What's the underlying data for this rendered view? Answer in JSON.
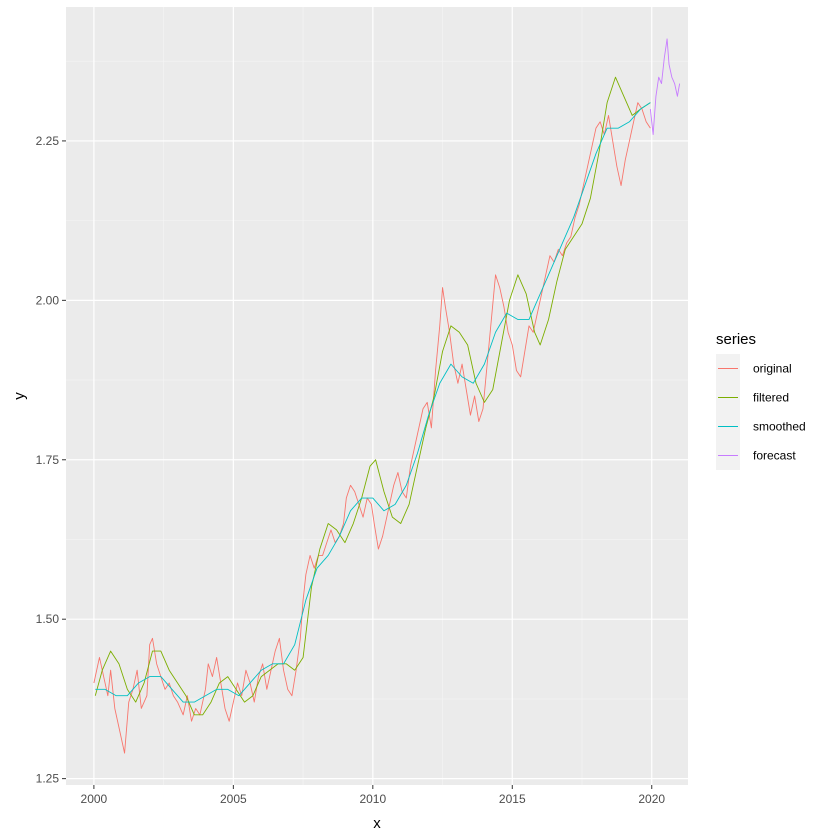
{
  "chart_data": {
    "type": "line",
    "title": "",
    "xlabel": "x",
    "ylabel": "y",
    "xlim": [
      1999.0,
      2021.3
    ],
    "ylim": [
      1.24,
      2.46
    ],
    "x_ticks": [
      2000,
      2005,
      2010,
      2015,
      2020
    ],
    "x_tick_labels": [
      "2000",
      "2005",
      "2010",
      "2015",
      "2020"
    ],
    "y_ticks": [
      1.25,
      1.5,
      1.75,
      2.0,
      2.25
    ],
    "y_tick_labels": [
      "1.25",
      "1.50",
      "1.75",
      "2.00",
      "2.25"
    ],
    "grid": true,
    "legend": {
      "title": "series",
      "position": "right"
    },
    "series": [
      {
        "name": "original",
        "color": "#F8766D",
        "points": [
          [
            2000.0,
            1.4
          ],
          [
            2000.2,
            1.44
          ],
          [
            2000.35,
            1.41
          ],
          [
            2000.5,
            1.38
          ],
          [
            2000.6,
            1.42
          ],
          [
            2000.75,
            1.36
          ],
          [
            2000.9,
            1.33
          ],
          [
            2001.0,
            1.31
          ],
          [
            2001.1,
            1.29
          ],
          [
            2001.25,
            1.37
          ],
          [
            2001.4,
            1.39
          ],
          [
            2001.55,
            1.42
          ],
          [
            2001.7,
            1.36
          ],
          [
            2001.9,
            1.38
          ],
          [
            2002.0,
            1.46
          ],
          [
            2002.1,
            1.47
          ],
          [
            2002.25,
            1.43
          ],
          [
            2002.4,
            1.41
          ],
          [
            2002.55,
            1.39
          ],
          [
            2002.7,
            1.4
          ],
          [
            2002.85,
            1.38
          ],
          [
            2003.0,
            1.37
          ],
          [
            2003.2,
            1.35
          ],
          [
            2003.35,
            1.38
          ],
          [
            2003.5,
            1.34
          ],
          [
            2003.65,
            1.36
          ],
          [
            2003.8,
            1.35
          ],
          [
            2004.0,
            1.39
          ],
          [
            2004.1,
            1.43
          ],
          [
            2004.25,
            1.41
          ],
          [
            2004.4,
            1.44
          ],
          [
            2004.55,
            1.4
          ],
          [
            2004.7,
            1.36
          ],
          [
            2004.85,
            1.34
          ],
          [
            2005.0,
            1.37
          ],
          [
            2005.15,
            1.4
          ],
          [
            2005.3,
            1.38
          ],
          [
            2005.45,
            1.42
          ],
          [
            2005.6,
            1.4
          ],
          [
            2005.75,
            1.37
          ],
          [
            2005.9,
            1.41
          ],
          [
            2006.05,
            1.43
          ],
          [
            2006.2,
            1.39
          ],
          [
            2006.35,
            1.42
          ],
          [
            2006.5,
            1.45
          ],
          [
            2006.65,
            1.47
          ],
          [
            2006.8,
            1.42
          ],
          [
            2006.95,
            1.39
          ],
          [
            2007.1,
            1.38
          ],
          [
            2007.25,
            1.42
          ],
          [
            2007.4,
            1.47
          ],
          [
            2007.5,
            1.53
          ],
          [
            2007.6,
            1.57
          ],
          [
            2007.75,
            1.6
          ],
          [
            2007.9,
            1.58
          ],
          [
            2008.05,
            1.6
          ],
          [
            2008.2,
            1.6
          ],
          [
            2008.35,
            1.62
          ],
          [
            2008.5,
            1.64
          ],
          [
            2008.65,
            1.62
          ],
          [
            2008.8,
            1.63
          ],
          [
            2008.95,
            1.65
          ],
          [
            2009.05,
            1.69
          ],
          [
            2009.2,
            1.71
          ],
          [
            2009.35,
            1.7
          ],
          [
            2009.5,
            1.68
          ],
          [
            2009.65,
            1.66
          ],
          [
            2009.8,
            1.69
          ],
          [
            2009.95,
            1.68
          ],
          [
            2010.05,
            1.65
          ],
          [
            2010.2,
            1.61
          ],
          [
            2010.35,
            1.63
          ],
          [
            2010.5,
            1.66
          ],
          [
            2010.6,
            1.68
          ],
          [
            2010.75,
            1.71
          ],
          [
            2010.9,
            1.73
          ],
          [
            2011.05,
            1.7
          ],
          [
            2011.2,
            1.69
          ],
          [
            2011.35,
            1.74
          ],
          [
            2011.5,
            1.77
          ],
          [
            2011.65,
            1.8
          ],
          [
            2011.8,
            1.83
          ],
          [
            2011.95,
            1.84
          ],
          [
            2012.1,
            1.8
          ],
          [
            2012.25,
            1.89
          ],
          [
            2012.4,
            1.96
          ],
          [
            2012.5,
            2.02
          ],
          [
            2012.6,
            1.99
          ],
          [
            2012.75,
            1.95
          ],
          [
            2012.9,
            1.9
          ],
          [
            2013.05,
            1.87
          ],
          [
            2013.2,
            1.9
          ],
          [
            2013.35,
            1.86
          ],
          [
            2013.5,
            1.82
          ],
          [
            2013.65,
            1.85
          ],
          [
            2013.8,
            1.81
          ],
          [
            2013.95,
            1.83
          ],
          [
            2014.1,
            1.9
          ],
          [
            2014.25,
            1.97
          ],
          [
            2014.4,
            2.04
          ],
          [
            2014.55,
            2.02
          ],
          [
            2014.7,
            1.99
          ],
          [
            2014.85,
            1.95
          ],
          [
            2015.0,
            1.93
          ],
          [
            2015.15,
            1.89
          ],
          [
            2015.3,
            1.88
          ],
          [
            2015.45,
            1.92
          ],
          [
            2015.6,
            1.96
          ],
          [
            2015.75,
            1.95
          ],
          [
            2015.9,
            1.98
          ],
          [
            2016.05,
            2.01
          ],
          [
            2016.2,
            2.04
          ],
          [
            2016.35,
            2.07
          ],
          [
            2016.5,
            2.06
          ],
          [
            2016.65,
            2.08
          ],
          [
            2016.8,
            2.07
          ],
          [
            2016.95,
            2.09
          ],
          [
            2017.1,
            2.1
          ],
          [
            2017.25,
            2.13
          ],
          [
            2017.4,
            2.15
          ],
          [
            2017.55,
            2.18
          ],
          [
            2017.7,
            2.21
          ],
          [
            2017.85,
            2.24
          ],
          [
            2018.0,
            2.27
          ],
          [
            2018.15,
            2.28
          ],
          [
            2018.3,
            2.26
          ],
          [
            2018.45,
            2.29
          ],
          [
            2018.6,
            2.25
          ],
          [
            2018.75,
            2.21
          ],
          [
            2018.9,
            2.18
          ],
          [
            2019.05,
            2.22
          ],
          [
            2019.2,
            2.25
          ],
          [
            2019.35,
            2.28
          ],
          [
            2019.5,
            2.31
          ],
          [
            2019.65,
            2.3
          ],
          [
            2019.8,
            2.28
          ],
          [
            2019.95,
            2.27
          ]
        ]
      },
      {
        "name": "filtered",
        "color": "#7CAE00",
        "points": [
          [
            2000.05,
            1.38
          ],
          [
            2000.3,
            1.42
          ],
          [
            2000.6,
            1.45
          ],
          [
            2000.9,
            1.43
          ],
          [
            2001.2,
            1.39
          ],
          [
            2001.5,
            1.37
          ],
          [
            2001.8,
            1.4
          ],
          [
            2002.1,
            1.45
          ],
          [
            2002.4,
            1.45
          ],
          [
            2002.7,
            1.42
          ],
          [
            2003.0,
            1.4
          ],
          [
            2003.3,
            1.38
          ],
          [
            2003.6,
            1.35
          ],
          [
            2003.9,
            1.35
          ],
          [
            2004.2,
            1.37
          ],
          [
            2004.5,
            1.4
          ],
          [
            2004.8,
            1.41
          ],
          [
            2005.1,
            1.39
          ],
          [
            2005.4,
            1.37
          ],
          [
            2005.7,
            1.38
          ],
          [
            2006.0,
            1.41
          ],
          [
            2006.3,
            1.42
          ],
          [
            2006.6,
            1.43
          ],
          [
            2006.9,
            1.43
          ],
          [
            2007.2,
            1.42
          ],
          [
            2007.5,
            1.44
          ],
          [
            2007.8,
            1.55
          ],
          [
            2008.1,
            1.61
          ],
          [
            2008.4,
            1.65
          ],
          [
            2008.7,
            1.64
          ],
          [
            2009.0,
            1.62
          ],
          [
            2009.3,
            1.65
          ],
          [
            2009.6,
            1.69
          ],
          [
            2009.9,
            1.74
          ],
          [
            2010.1,
            1.75
          ],
          [
            2010.4,
            1.7
          ],
          [
            2010.7,
            1.66
          ],
          [
            2011.0,
            1.65
          ],
          [
            2011.3,
            1.68
          ],
          [
            2011.6,
            1.74
          ],
          [
            2011.9,
            1.8
          ],
          [
            2012.2,
            1.85
          ],
          [
            2012.5,
            1.92
          ],
          [
            2012.8,
            1.96
          ],
          [
            2013.1,
            1.95
          ],
          [
            2013.4,
            1.93
          ],
          [
            2013.7,
            1.87
          ],
          [
            2014.0,
            1.84
          ],
          [
            2014.3,
            1.86
          ],
          [
            2014.6,
            1.93
          ],
          [
            2014.9,
            2.0
          ],
          [
            2015.2,
            2.04
          ],
          [
            2015.5,
            2.01
          ],
          [
            2015.8,
            1.95
          ],
          [
            2016.0,
            1.93
          ],
          [
            2016.3,
            1.97
          ],
          [
            2016.6,
            2.03
          ],
          [
            2016.9,
            2.08
          ],
          [
            2017.2,
            2.1
          ],
          [
            2017.5,
            2.12
          ],
          [
            2017.8,
            2.16
          ],
          [
            2018.1,
            2.23
          ],
          [
            2018.4,
            2.31
          ],
          [
            2018.7,
            2.35
          ],
          [
            2019.0,
            2.32
          ],
          [
            2019.3,
            2.29
          ],
          [
            2019.6,
            2.3
          ],
          [
            2019.95,
            2.31
          ]
        ]
      },
      {
        "name": "smoothed",
        "color": "#00BFC4",
        "points": [
          [
            2000.05,
            1.39
          ],
          [
            2000.4,
            1.39
          ],
          [
            2000.8,
            1.38
          ],
          [
            2001.2,
            1.38
          ],
          [
            2001.6,
            1.4
          ],
          [
            2002.0,
            1.41
          ],
          [
            2002.4,
            1.41
          ],
          [
            2002.8,
            1.39
          ],
          [
            2003.2,
            1.37
          ],
          [
            2003.6,
            1.37
          ],
          [
            2004.0,
            1.38
          ],
          [
            2004.4,
            1.39
          ],
          [
            2004.8,
            1.39
          ],
          [
            2005.2,
            1.38
          ],
          [
            2005.6,
            1.4
          ],
          [
            2006.0,
            1.42
          ],
          [
            2006.4,
            1.43
          ],
          [
            2006.8,
            1.43
          ],
          [
            2007.2,
            1.46
          ],
          [
            2007.6,
            1.53
          ],
          [
            2008.0,
            1.58
          ],
          [
            2008.4,
            1.6
          ],
          [
            2008.8,
            1.63
          ],
          [
            2009.2,
            1.67
          ],
          [
            2009.6,
            1.69
          ],
          [
            2010.0,
            1.69
          ],
          [
            2010.4,
            1.67
          ],
          [
            2010.8,
            1.68
          ],
          [
            2011.2,
            1.71
          ],
          [
            2011.6,
            1.76
          ],
          [
            2012.0,
            1.82
          ],
          [
            2012.4,
            1.87
          ],
          [
            2012.8,
            1.9
          ],
          [
            2013.2,
            1.88
          ],
          [
            2013.6,
            1.87
          ],
          [
            2014.0,
            1.9
          ],
          [
            2014.4,
            1.95
          ],
          [
            2014.8,
            1.98
          ],
          [
            2015.2,
            1.97
          ],
          [
            2015.6,
            1.97
          ],
          [
            2016.0,
            2.01
          ],
          [
            2016.4,
            2.05
          ],
          [
            2016.8,
            2.09
          ],
          [
            2017.2,
            2.13
          ],
          [
            2017.6,
            2.18
          ],
          [
            2018.0,
            2.23
          ],
          [
            2018.4,
            2.27
          ],
          [
            2018.8,
            2.27
          ],
          [
            2019.2,
            2.28
          ],
          [
            2019.6,
            2.3
          ],
          [
            2019.95,
            2.31
          ]
        ]
      },
      {
        "name": "forecast",
        "color": "#C77CFF",
        "points": [
          [
            2019.95,
            2.3
          ],
          [
            2020.05,
            2.26
          ],
          [
            2020.15,
            2.32
          ],
          [
            2020.25,
            2.35
          ],
          [
            2020.35,
            2.34
          ],
          [
            2020.45,
            2.38
          ],
          [
            2020.55,
            2.41
          ],
          [
            2020.62,
            2.37
          ],
          [
            2020.72,
            2.35
          ],
          [
            2020.82,
            2.34
          ],
          [
            2020.92,
            2.32
          ],
          [
            2021.0,
            2.34
          ]
        ]
      }
    ]
  }
}
